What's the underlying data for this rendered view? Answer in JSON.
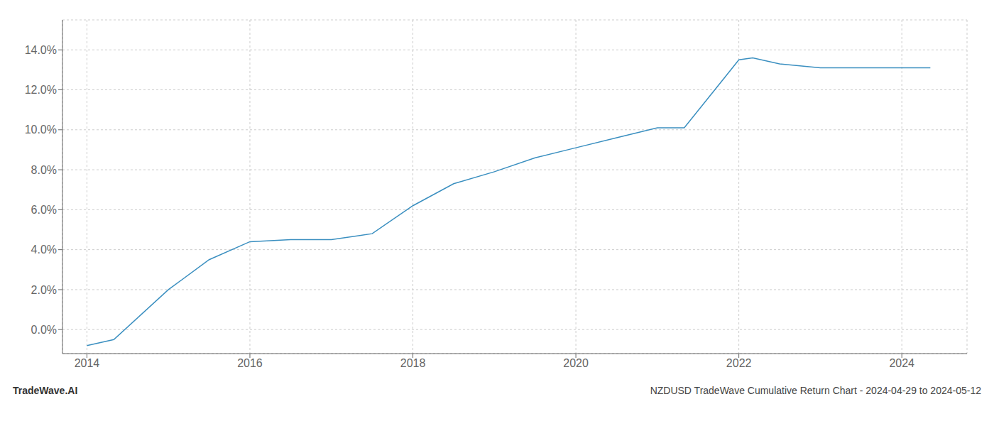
{
  "chart_data": {
    "type": "line",
    "title": "NZDUSD TradeWave Cumulative Return Chart - 2024-04-29 to 2024-05-12",
    "annotations": [
      "TradeWave.AI"
    ],
    "x": [
      2014.0,
      2014.33,
      2015.0,
      2015.5,
      2016.0,
      2016.5,
      2017.0,
      2017.5,
      2018.0,
      2018.5,
      2019.0,
      2019.5,
      2020.0,
      2020.5,
      2021.0,
      2021.33,
      2022.0,
      2022.17,
      2022.5,
      2023.0,
      2023.5,
      2024.0,
      2024.35
    ],
    "values": [
      -0.008,
      -0.005,
      0.02,
      0.035,
      0.044,
      0.045,
      0.045,
      0.048,
      0.062,
      0.073,
      0.079,
      0.086,
      0.091,
      0.096,
      0.101,
      0.101,
      0.135,
      0.136,
      0.133,
      0.131,
      0.131,
      0.131,
      0.131
    ],
    "color": "#3a8fc0",
    "xlim": [
      2013.7,
      2024.8
    ],
    "ylim": [
      -0.012,
      0.155
    ],
    "xticks": [
      2014,
      2016,
      2018,
      2020,
      2022,
      2024
    ],
    "yticks": [
      {
        "value": 0.0,
        "label": "0.0%"
      },
      {
        "value": 0.02,
        "label": "2.0%"
      },
      {
        "value": 0.04,
        "label": "4.0%"
      },
      {
        "value": 0.06,
        "label": "6.0%"
      },
      {
        "value": 0.08,
        "label": "8.0%"
      },
      {
        "value": 0.1,
        "label": "10.0%"
      },
      {
        "value": 0.12,
        "label": "12.0%"
      },
      {
        "value": 0.14,
        "label": "14.0%"
      }
    ],
    "grid": true
  }
}
